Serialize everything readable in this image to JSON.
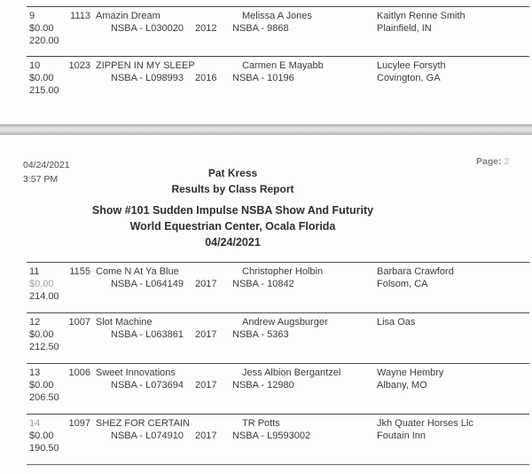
{
  "report": {
    "printed_date": "04/24/2021",
    "printed_time": "3:57 PM",
    "page_label": "Page:",
    "page_number": "2",
    "presenter": "Pat Kress",
    "title": "Results by Class Report",
    "show_title": "Show #101 Sudden Impulse NSBA Show And Futurity",
    "venue": "World Equestrian Center, Ocala Florida",
    "show_date": "04/24/2021"
  },
  "previous_page_rows": [
    {
      "place": "9",
      "fee": "$0.00",
      "score": "220.00",
      "horse_no": "1113",
      "horse_name": "Amazin Dream",
      "horse_reg": "NSBA - L030020",
      "year": "2012",
      "rider_name": "Melissa A Jones",
      "rider_reg": "NSBA - 9868",
      "owner_name": "Kaitlyn Renne Smith",
      "owner_city": "Plainfield, IN",
      "faded": []
    },
    {
      "place": "10",
      "fee": "$0.00",
      "score": "215.00",
      "horse_no": "1023",
      "horse_name": "ZIPPEN IN MY SLEEP",
      "horse_reg": "NSBA - L098993",
      "year": "2016",
      "rider_name": "Carmen E Mayabb",
      "rider_reg": "NSBA - 10196",
      "owner_name": "Lucylee Forsyth",
      "owner_city": "Covington, GA",
      "faded": []
    }
  ],
  "current_page_rows": [
    {
      "place": "11",
      "fee": "$0.00",
      "score": "214.00",
      "horse_no": "1155",
      "horse_name": "Come N At Ya Blue",
      "horse_reg": "NSBA - L064149",
      "year": "2017",
      "rider_name": "Christopher Holbin",
      "rider_reg": "NSBA - 10842",
      "owner_name": "Barbara Crawford",
      "owner_city": "Folsom, CA",
      "faded": [
        "fee"
      ]
    },
    {
      "place": "12",
      "fee": "$0.00",
      "score": "212.50",
      "horse_no": "1007",
      "horse_name": "Slot Machine",
      "horse_reg": "NSBA - L063861",
      "year": "2017",
      "rider_name": "Andrew Augsburger",
      "rider_reg": "NSBA - 5363",
      "owner_name": "Lisa Oas",
      "owner_city": "",
      "faded": []
    },
    {
      "place": "13",
      "fee": "$0.00",
      "score": "206.50",
      "horse_no": "1006",
      "horse_name": "Sweet Innovations",
      "horse_reg": "NSBA - L073694",
      "year": "2017",
      "rider_name": "Jess Albion Bergantzel",
      "rider_reg": "NSBA - 12980",
      "owner_name": "Wayne Hembry",
      "owner_city": "Albany, MO",
      "faded": []
    },
    {
      "place": "14",
      "fee": "$0.00",
      "score": "190.50",
      "horse_no": "1097",
      "horse_name": "SHEZ FOR CERTAIN",
      "horse_reg": "NSBA - L074910",
      "year": "2017",
      "rider_name": "TR Potts",
      "rider_reg": "NSBA - L9593002",
      "owner_name": "Jkh Quater Horses Llc",
      "owner_city": "Foutain Inn",
      "faded": [
        "place"
      ]
    }
  ]
}
